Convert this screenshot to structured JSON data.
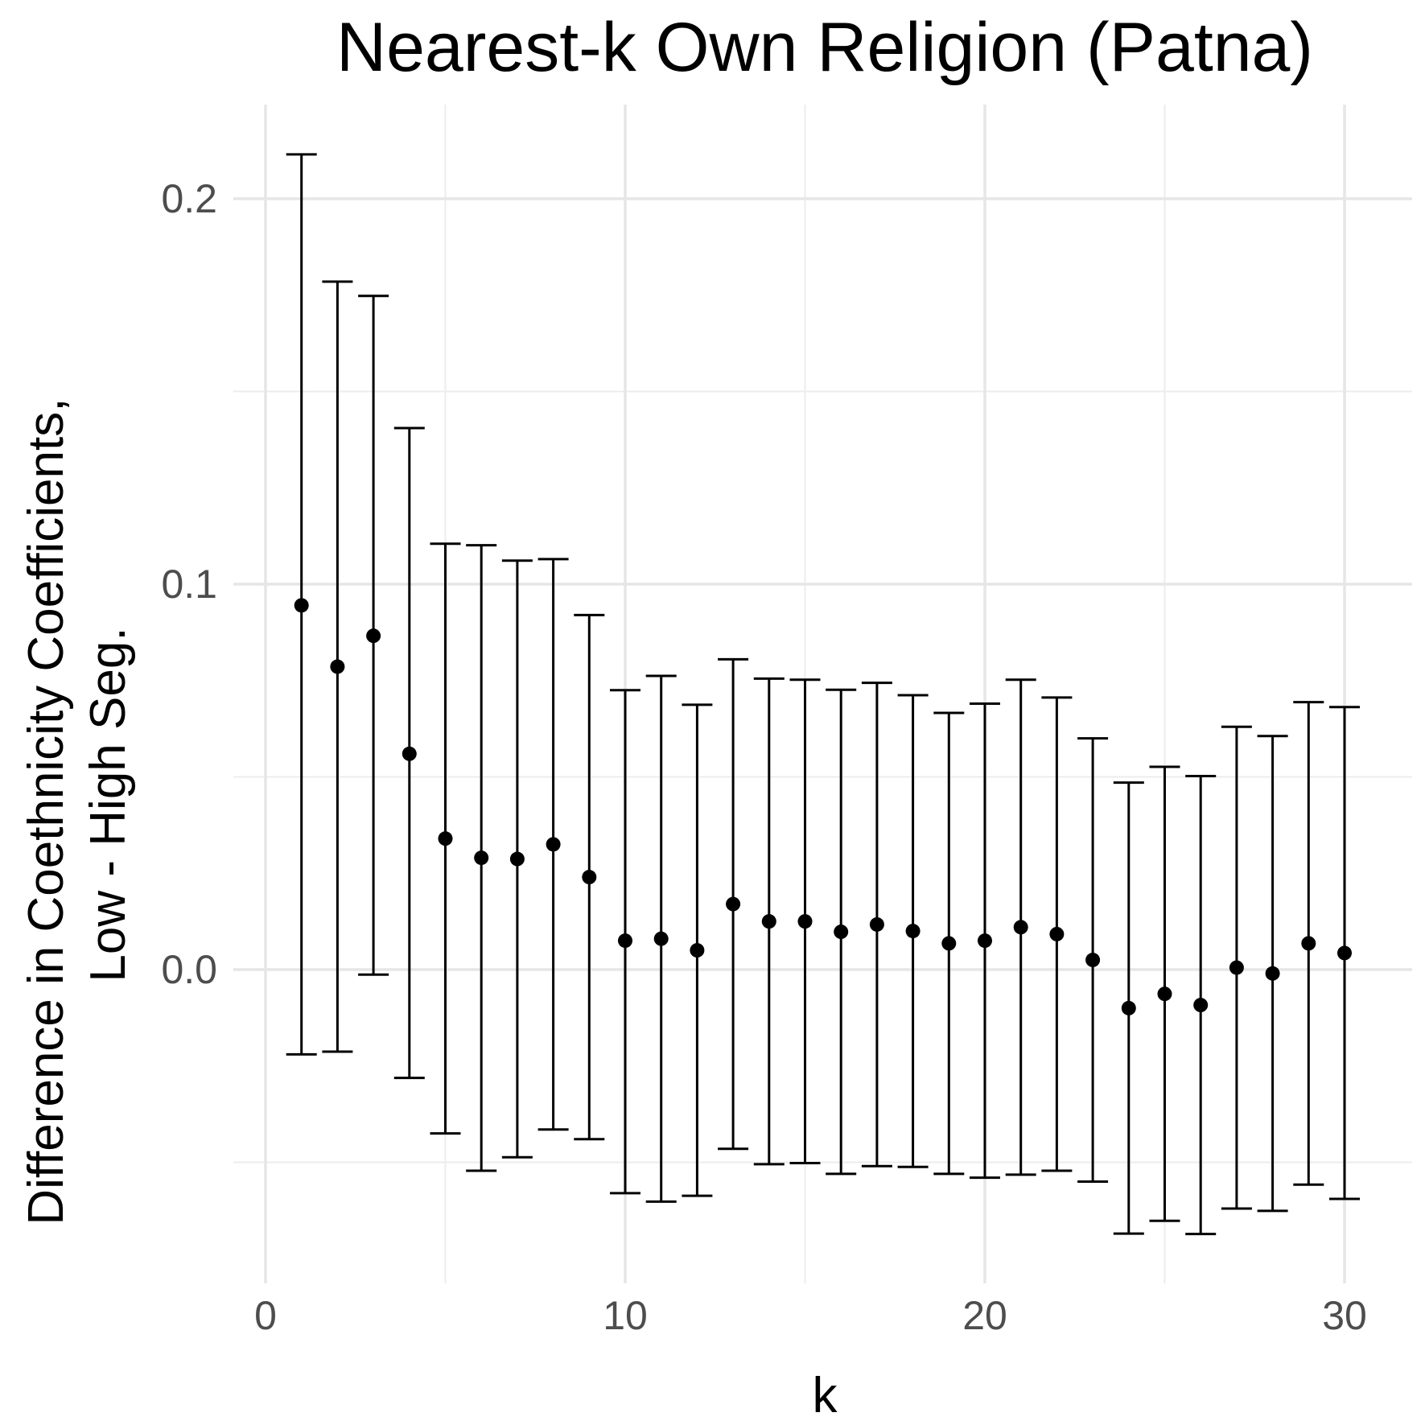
{
  "chart_data": {
    "type": "scatter",
    "title": "Nearest-k Own Religion (Patna)",
    "xlabel": "k",
    "ylabel": [
      "Difference in Coethnicity Coefficients,",
      "Low - High Seg."
    ],
    "xlim": [
      -0.5,
      32
    ],
    "ylim": [
      -0.083,
      0.225
    ],
    "x_ticks": [
      0,
      10,
      20,
      30
    ],
    "x_tick_labels": [
      "0",
      "10",
      "20",
      "30"
    ],
    "y_ticks": [
      0.0,
      0.1,
      0.2
    ],
    "y_tick_labels": [
      "0.0",
      "0.1",
      "0.2"
    ],
    "grid": true,
    "legend": "none",
    "series": [
      {
        "color": "#000000",
        "points": [
          {
            "k": 1,
            "estimate": 0.0945,
            "lower": -0.022,
            "upper": 0.2115
          },
          {
            "k": 2,
            "estimate": 0.0786,
            "lower": -0.0213,
            "upper": 0.1785
          },
          {
            "k": 3,
            "estimate": 0.0866,
            "lower": -0.0013,
            "upper": 0.1748
          },
          {
            "k": 4,
            "estimate": 0.056,
            "lower": -0.0281,
            "upper": 0.1405
          },
          {
            "k": 5,
            "estimate": 0.034,
            "lower": -0.0425,
            "upper": 0.1105
          },
          {
            "k": 6,
            "estimate": 0.029,
            "lower": -0.0522,
            "upper": 0.1101
          },
          {
            "k": 7,
            "estimate": 0.0287,
            "lower": -0.0487,
            "upper": 0.1061
          },
          {
            "k": 8,
            "estimate": 0.0325,
            "lower": -0.0415,
            "upper": 0.1065
          },
          {
            "k": 9,
            "estimate": 0.024,
            "lower": -0.044,
            "upper": 0.092
          },
          {
            "k": 10,
            "estimate": 0.0075,
            "lower": -0.058,
            "upper": 0.0725
          },
          {
            "k": 11,
            "estimate": 0.008,
            "lower": -0.0602,
            "upper": 0.0762
          },
          {
            "k": 12,
            "estimate": 0.005,
            "lower": -0.0587,
            "upper": 0.0687
          },
          {
            "k": 13,
            "estimate": 0.017,
            "lower": -0.0465,
            "upper": 0.0805
          },
          {
            "k": 14,
            "estimate": 0.0125,
            "lower": -0.0505,
            "upper": 0.0755
          },
          {
            "k": 15,
            "estimate": 0.0125,
            "lower": -0.0502,
            "upper": 0.0752
          },
          {
            "k": 16,
            "estimate": 0.0098,
            "lower": -0.053,
            "upper": 0.0726
          },
          {
            "k": 17,
            "estimate": 0.0117,
            "lower": -0.051,
            "upper": 0.0744
          },
          {
            "k": 18,
            "estimate": 0.01,
            "lower": -0.0512,
            "upper": 0.0712
          },
          {
            "k": 19,
            "estimate": 0.0068,
            "lower": -0.053,
            "upper": 0.0666
          },
          {
            "k": 20,
            "estimate": 0.0075,
            "lower": -0.054,
            "upper": 0.069
          },
          {
            "k": 21,
            "estimate": 0.011,
            "lower": -0.0532,
            "upper": 0.0752
          },
          {
            "k": 22,
            "estimate": 0.0092,
            "lower": -0.0522,
            "upper": 0.0706
          },
          {
            "k": 23,
            "estimate": 0.0025,
            "lower": -0.055,
            "upper": 0.06
          },
          {
            "k": 24,
            "estimate": -0.01,
            "lower": -0.0685,
            "upper": 0.0485
          },
          {
            "k": 25,
            "estimate": -0.0063,
            "lower": -0.0652,
            "upper": 0.0526
          },
          {
            "k": 26,
            "estimate": -0.0092,
            "lower": -0.0686,
            "upper": 0.0502
          },
          {
            "k": 27,
            "estimate": 0.0005,
            "lower": -0.062,
            "upper": 0.063
          },
          {
            "k": 28,
            "estimate": -0.001,
            "lower": -0.0626,
            "upper": 0.0606
          },
          {
            "k": 29,
            "estimate": 0.0068,
            "lower": -0.0558,
            "upper": 0.0694
          },
          {
            "k": 30,
            "estimate": 0.0043,
            "lower": -0.0595,
            "upper": 0.0681
          }
        ]
      }
    ]
  }
}
